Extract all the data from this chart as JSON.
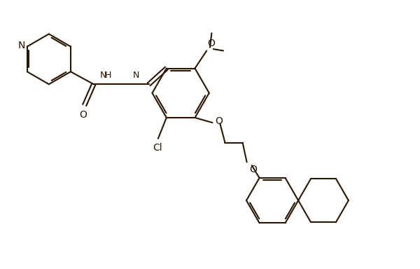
{
  "bg_color": "#ffffff",
  "line_color": "#2a1500",
  "line_width": 1.5,
  "font_size": 10,
  "xlim": [
    0,
    10
  ],
  "ylim": [
    0,
    6.4
  ]
}
